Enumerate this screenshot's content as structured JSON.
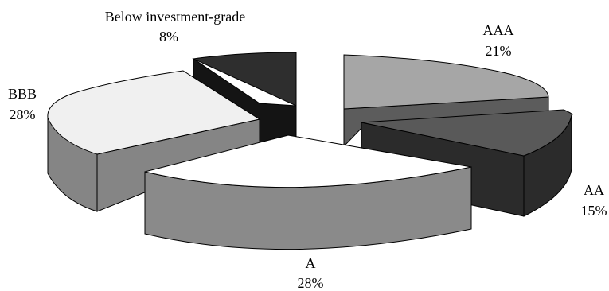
{
  "chart_data": {
    "type": "pie",
    "title": "",
    "three_d": true,
    "exploded": true,
    "slices": [
      {
        "label": "AAA",
        "percent_label": "21%",
        "value": 21,
        "top_color": "#a6a6a6",
        "side_color": "#5c5c5c"
      },
      {
        "label": "AA",
        "percent_label": "15%",
        "value": 15,
        "top_color": "#595959",
        "side_color": "#2b2b2b"
      },
      {
        "label": "A",
        "percent_label": "28%",
        "value": 28,
        "top_color": "#ffffff",
        "side_color": "#8a8a8a"
      },
      {
        "label": "BBB",
        "percent_label": "28%",
        "value": 28,
        "top_color": "#f0f0f0",
        "side_color": "#858585"
      },
      {
        "label": "Below investment-grade",
        "percent_label": "8%",
        "value": 8,
        "top_color": "#2e2e2e",
        "side_color": "#141414"
      }
    ]
  }
}
